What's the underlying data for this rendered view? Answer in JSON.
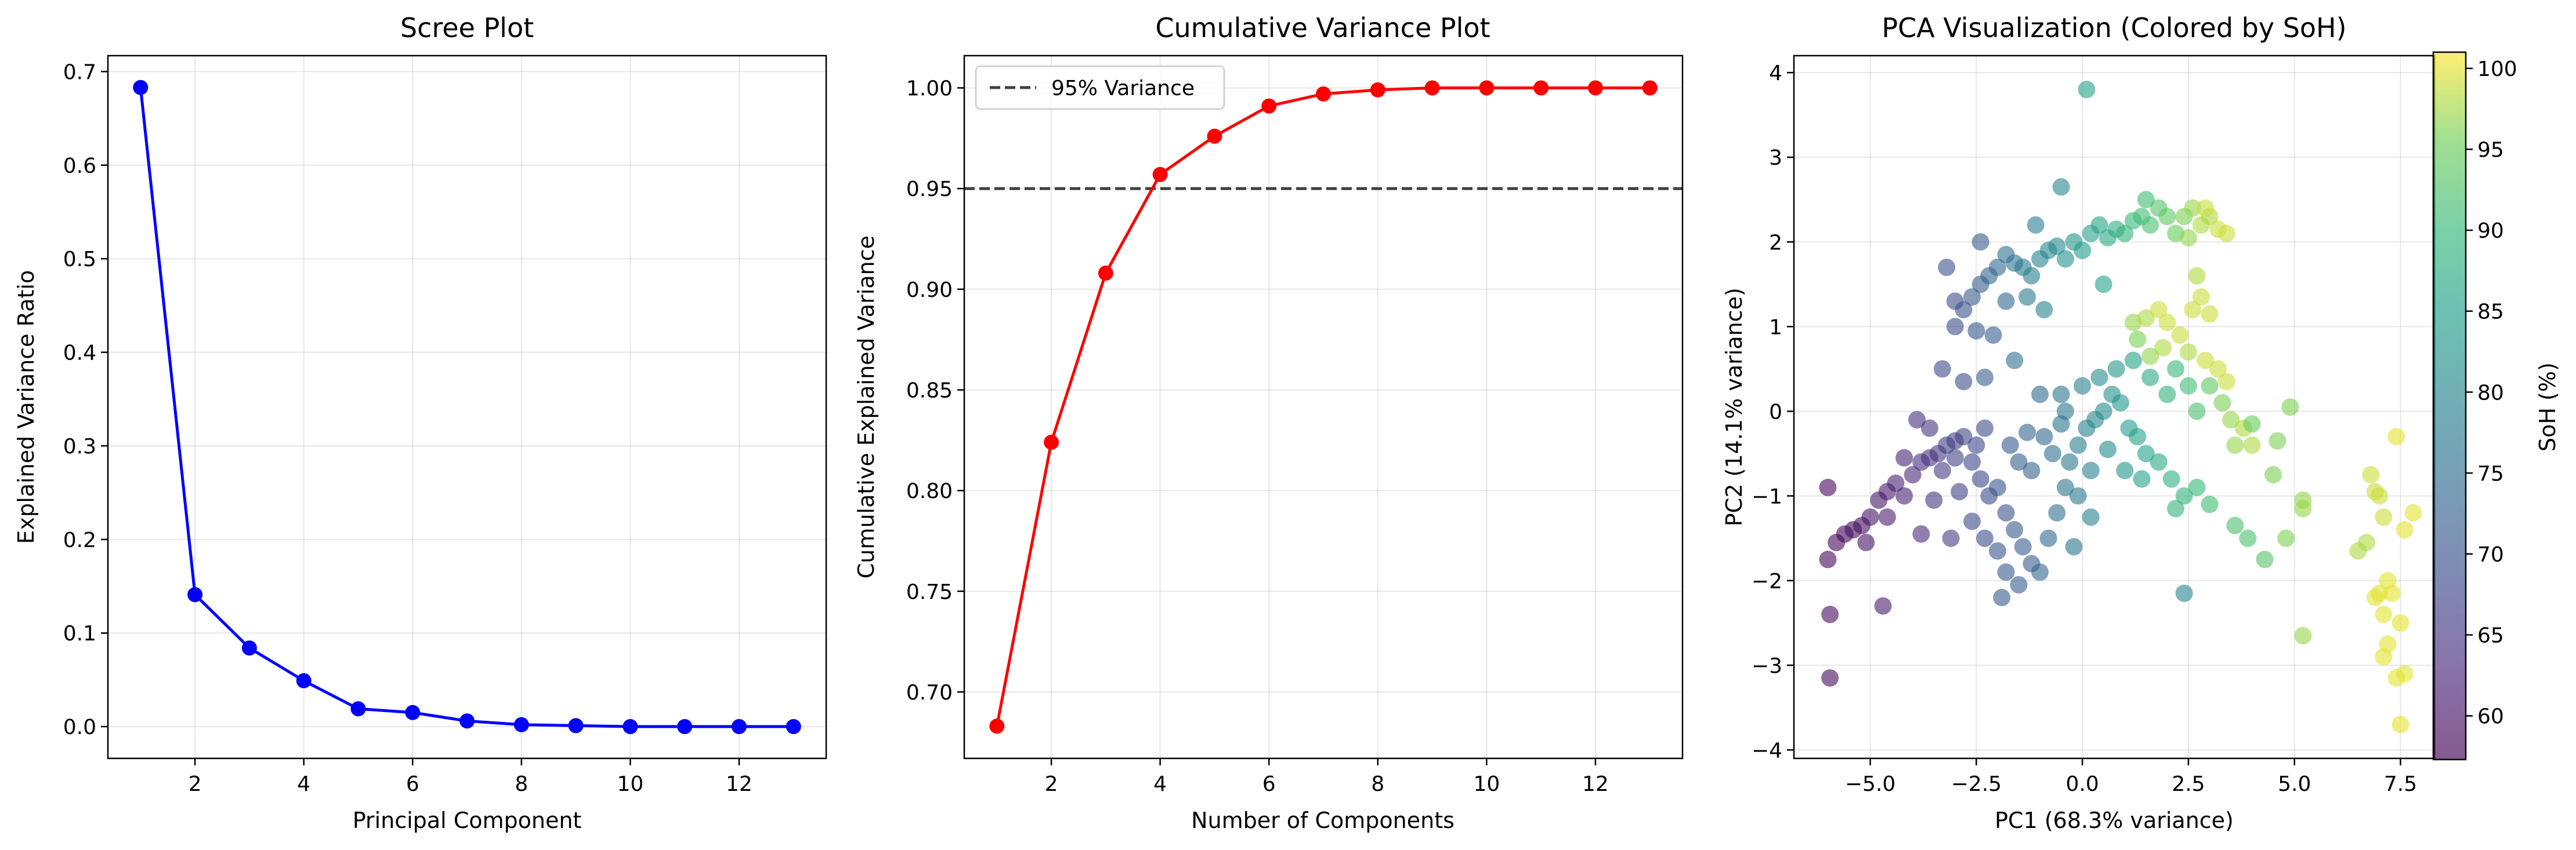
{
  "chart_data": [
    {
      "type": "line",
      "title": "Scree Plot",
      "xlabel": "Principal Component",
      "ylabel": "Explained Variance Ratio",
      "xlim": [
        0.4,
        13.6
      ],
      "ylim": [
        -0.034,
        0.717
      ],
      "xticks": [
        2,
        4,
        6,
        8,
        10,
        12
      ],
      "yticks": [
        0.0,
        0.1,
        0.2,
        0.3,
        0.4,
        0.5,
        0.6,
        0.7
      ],
      "ytick_labels": [
        "0.0",
        "0.1",
        "0.2",
        "0.3",
        "0.4",
        "0.5",
        "0.6",
        "0.7"
      ],
      "grid": true,
      "color": "#0000ff",
      "x": [
        1,
        2,
        3,
        4,
        5,
        6,
        7,
        8,
        9,
        10,
        11,
        12,
        13
      ],
      "values": [
        0.683,
        0.141,
        0.084,
        0.049,
        0.019,
        0.015,
        0.006,
        0.002,
        0.001,
        0.0,
        0.0,
        0.0,
        0.0
      ]
    },
    {
      "type": "line",
      "title": "Cumulative Variance Plot",
      "xlabel": "Number of Components",
      "ylabel": "Cumulative Explained Variance",
      "xlim": [
        0.4,
        13.6
      ],
      "ylim": [
        0.667,
        1.016
      ],
      "xticks": [
        2,
        4,
        6,
        8,
        10,
        12
      ],
      "yticks": [
        0.7,
        0.75,
        0.8,
        0.85,
        0.9,
        0.95,
        1.0
      ],
      "ytick_labels": [
        "0.70",
        "0.75",
        "0.80",
        "0.85",
        "0.90",
        "0.95",
        "1.00"
      ],
      "grid": true,
      "color": "#ff0000",
      "x": [
        1,
        2,
        3,
        4,
        5,
        6,
        7,
        8,
        9,
        10,
        11,
        12,
        13
      ],
      "values": [
        0.683,
        0.824,
        0.908,
        0.957,
        0.976,
        0.991,
        0.997,
        0.999,
        1.0,
        1.0,
        1.0,
        1.0,
        1.0
      ],
      "reference_line": {
        "y": 0.95,
        "label": "95% Variance",
        "color": "#404040",
        "style": "dashed"
      },
      "legend_position": "upper-left"
    },
    {
      "type": "scatter",
      "title": "PCA Visualization (Colored by SoH)",
      "xlabel": "PC1 (68.3% variance)",
      "ylabel": "PC2 (14.1% variance)",
      "xlim": [
        -6.8,
        8.3
      ],
      "ylim": [
        -4.1,
        4.2
      ],
      "xticks": [
        -5.0,
        -2.5,
        0.0,
        2.5,
        5.0,
        7.5
      ],
      "xtick_labels": [
        "−5.0",
        "−2.5",
        "0.0",
        "2.5",
        "5.0",
        "7.5"
      ],
      "yticks": [
        -4,
        -3,
        -2,
        -1,
        0,
        1,
        2,
        3,
        4
      ],
      "ytick_labels": [
        "−4",
        "−3",
        "−2",
        "−1",
        "0",
        "1",
        "2",
        "3",
        "4"
      ],
      "grid": true,
      "colormap": "viridis",
      "colorbar": {
        "label": "SoH (%)",
        "range": [
          57.3,
          101.0
        ],
        "ticks": [
          60,
          65,
          70,
          75,
          80,
          85,
          90,
          95,
          100
        ]
      },
      "points": [
        {
          "x": -6.0,
          "y": -0.9,
          "c": 58
        },
        {
          "x": -6.0,
          "y": -1.75,
          "c": 58
        },
        {
          "x": -5.95,
          "y": -2.4,
          "c": 59
        },
        {
          "x": -5.95,
          "y": -3.15,
          "c": 59
        },
        {
          "x": -5.8,
          "y": -1.55,
          "c": 58
        },
        {
          "x": -5.6,
          "y": -1.45,
          "c": 58
        },
        {
          "x": -5.4,
          "y": -1.4,
          "c": 59
        },
        {
          "x": -5.2,
          "y": -1.35,
          "c": 59
        },
        {
          "x": -5.0,
          "y": -1.25,
          "c": 60
        },
        {
          "x": -4.8,
          "y": -1.05,
          "c": 60
        },
        {
          "x": -4.6,
          "y": -0.95,
          "c": 61
        },
        {
          "x": -4.7,
          "y": -2.3,
          "c": 61
        },
        {
          "x": -4.4,
          "y": -0.85,
          "c": 62
        },
        {
          "x": -4.2,
          "y": -1.0,
          "c": 62
        },
        {
          "x": -4.0,
          "y": -0.75,
          "c": 63
        },
        {
          "x": -3.8,
          "y": -0.6,
          "c": 64
        },
        {
          "x": -3.6,
          "y": -0.55,
          "c": 64
        },
        {
          "x": -3.4,
          "y": -0.5,
          "c": 65
        },
        {
          "x": -3.2,
          "y": -0.4,
          "c": 66
        },
        {
          "x": -3.0,
          "y": -0.35,
          "c": 66
        },
        {
          "x": -2.8,
          "y": -0.3,
          "c": 67
        },
        {
          "x": -3.5,
          "y": -1.05,
          "c": 65
        },
        {
          "x": -3.1,
          "y": -1.5,
          "c": 66
        },
        {
          "x": -2.9,
          "y": -0.95,
          "c": 67
        },
        {
          "x": -3.9,
          "y": -0.1,
          "c": 64
        },
        {
          "x": -3.6,
          "y": -0.2,
          "c": 65
        },
        {
          "x": -2.6,
          "y": -0.6,
          "c": 68
        },
        {
          "x": -2.4,
          "y": -0.8,
          "c": 68
        },
        {
          "x": -2.2,
          "y": -1.0,
          "c": 69
        },
        {
          "x": -2.0,
          "y": -0.9,
          "c": 70
        },
        {
          "x": -1.8,
          "y": -1.2,
          "c": 70
        },
        {
          "x": -1.6,
          "y": -1.4,
          "c": 71
        },
        {
          "x": -1.4,
          "y": -1.6,
          "c": 72
        },
        {
          "x": -1.2,
          "y": -1.8,
          "c": 72
        },
        {
          "x": -1.0,
          "y": -1.9,
          "c": 73
        },
        {
          "x": -1.8,
          "y": -1.9,
          "c": 71
        },
        {
          "x": -2.0,
          "y": -1.65,
          "c": 70
        },
        {
          "x": -1.9,
          "y": -2.2,
          "c": 71
        },
        {
          "x": -1.5,
          "y": -2.05,
          "c": 72
        },
        {
          "x": -0.8,
          "y": -1.5,
          "c": 74
        },
        {
          "x": -0.6,
          "y": -1.2,
          "c": 75
        },
        {
          "x": -0.4,
          "y": -0.9,
          "c": 76
        },
        {
          "x": -0.3,
          "y": -0.6,
          "c": 77
        },
        {
          "x": -0.1,
          "y": -0.4,
          "c": 78
        },
        {
          "x": 0.1,
          "y": -0.2,
          "c": 79
        },
        {
          "x": 0.3,
          "y": -0.1,
          "c": 80
        },
        {
          "x": 0.5,
          "y": 0.0,
          "c": 81
        },
        {
          "x": 0.7,
          "y": 0.2,
          "c": 82
        },
        {
          "x": 0.9,
          "y": 0.1,
          "c": 83
        },
        {
          "x": 1.1,
          "y": -0.2,
          "c": 84
        },
        {
          "x": 1.3,
          "y": -0.3,
          "c": 85
        },
        {
          "x": 1.5,
          "y": -0.5,
          "c": 86
        },
        {
          "x": 1.8,
          "y": -0.6,
          "c": 87
        },
        {
          "x": 2.1,
          "y": -0.8,
          "c": 88
        },
        {
          "x": 2.4,
          "y": -1.0,
          "c": 89
        },
        {
          "x": 2.7,
          "y": -0.9,
          "c": 90
        },
        {
          "x": 3.0,
          "y": -1.1,
          "c": 91
        },
        {
          "x": 2.2,
          "y": -1.15,
          "c": 89
        },
        {
          "x": 3.6,
          "y": -1.35,
          "c": 92
        },
        {
          "x": 3.9,
          "y": -1.5,
          "c": 92
        },
        {
          "x": 4.3,
          "y": -1.75,
          "c": 93
        },
        {
          "x": 2.4,
          "y": -2.15,
          "c": 80
        },
        {
          "x": -0.2,
          "y": -1.6,
          "c": 76
        },
        {
          "x": 0.2,
          "y": -1.25,
          "c": 79
        },
        {
          "x": -1.2,
          "y": -0.7,
          "c": 73
        },
        {
          "x": -0.9,
          "y": -0.3,
          "c": 74
        },
        {
          "x": -0.7,
          "y": -0.5,
          "c": 75
        },
        {
          "x": -1.5,
          "y": -0.6,
          "c": 72
        },
        {
          "x": -2.5,
          "y": -0.4,
          "c": 68
        },
        {
          "x": -2.3,
          "y": -0.2,
          "c": 69
        },
        {
          "x": -1.0,
          "y": 0.2,
          "c": 74
        },
        {
          "x": -0.5,
          "y": 0.2,
          "c": 76
        },
        {
          "x": 0.0,
          "y": 0.3,
          "c": 79
        },
        {
          "x": -0.4,
          "y": 0.0,
          "c": 77
        },
        {
          "x": 0.4,
          "y": 0.4,
          "c": 81
        },
        {
          "x": 0.8,
          "y": 0.5,
          "c": 83
        },
        {
          "x": 1.2,
          "y": 0.6,
          "c": 85
        },
        {
          "x": 1.6,
          "y": 0.4,
          "c": 87
        },
        {
          "x": 2.0,
          "y": 0.2,
          "c": 89
        },
        {
          "x": 2.2,
          "y": 0.5,
          "c": 90
        },
        {
          "x": 2.5,
          "y": 0.3,
          "c": 91
        },
        {
          "x": 2.7,
          "y": 0.0,
          "c": 92
        },
        {
          "x": 3.0,
          "y": 0.3,
          "c": 94
        },
        {
          "x": 3.3,
          "y": 0.1,
          "c": 96
        },
        {
          "x": 3.5,
          "y": -0.1,
          "c": 97
        },
        {
          "x": 3.8,
          "y": -0.2,
          "c": 98
        },
        {
          "x": 4.0,
          "y": -0.4,
          "c": 98
        },
        {
          "x": 3.6,
          "y": -0.4,
          "c": 97
        },
        {
          "x": 1.2,
          "y": 1.05,
          "c": 97
        },
        {
          "x": 1.5,
          "y": 1.1,
          "c": 98
        },
        {
          "x": 1.8,
          "y": 1.2,
          "c": 99
        },
        {
          "x": 2.0,
          "y": 1.05,
          "c": 99
        },
        {
          "x": 2.3,
          "y": 0.9,
          "c": 99
        },
        {
          "x": 2.6,
          "y": 1.2,
          "c": 99
        },
        {
          "x": 2.8,
          "y": 1.35,
          "c": 99
        },
        {
          "x": 3.0,
          "y": 1.15,
          "c": 99
        },
        {
          "x": 2.7,
          "y": 1.6,
          "c": 98
        },
        {
          "x": 2.5,
          "y": 0.7,
          "c": 98
        },
        {
          "x": 2.9,
          "y": 0.6,
          "c": 99
        },
        {
          "x": 3.2,
          "y": 0.5,
          "c": 99
        },
        {
          "x": 1.9,
          "y": 0.75,
          "c": 98
        },
        {
          "x": 1.6,
          "y": 0.65,
          "c": 97
        },
        {
          "x": 1.3,
          "y": 0.85,
          "c": 96
        },
        {
          "x": 3.4,
          "y": 0.35,
          "c": 99
        },
        {
          "x": -3.2,
          "y": 1.7,
          "c": 70
        },
        {
          "x": -3.0,
          "y": 1.3,
          "c": 69
        },
        {
          "x": -2.8,
          "y": 1.2,
          "c": 70
        },
        {
          "x": -2.6,
          "y": 1.35,
          "c": 71
        },
        {
          "x": -2.4,
          "y": 1.5,
          "c": 72
        },
        {
          "x": -2.2,
          "y": 1.6,
          "c": 73
        },
        {
          "x": -2.0,
          "y": 1.7,
          "c": 74
        },
        {
          "x": -1.8,
          "y": 1.85,
          "c": 75
        },
        {
          "x": -1.6,
          "y": 1.75,
          "c": 76
        },
        {
          "x": -1.4,
          "y": 1.7,
          "c": 77
        },
        {
          "x": -1.2,
          "y": 1.6,
          "c": 78
        },
        {
          "x": -1.0,
          "y": 1.8,
          "c": 79
        },
        {
          "x": -0.8,
          "y": 1.9,
          "c": 80
        },
        {
          "x": -0.6,
          "y": 1.95,
          "c": 81
        },
        {
          "x": -0.4,
          "y": 1.8,
          "c": 82
        },
        {
          "x": -0.2,
          "y": 2.0,
          "c": 83
        },
        {
          "x": 0.0,
          "y": 1.9,
          "c": 84
        },
        {
          "x": 0.2,
          "y": 2.1,
          "c": 85
        },
        {
          "x": 0.4,
          "y": 2.2,
          "c": 86
        },
        {
          "x": 0.6,
          "y": 2.05,
          "c": 87
        },
        {
          "x": 0.8,
          "y": 2.15,
          "c": 88
        },
        {
          "x": 1.0,
          "y": 2.1,
          "c": 89
        },
        {
          "x": 1.2,
          "y": 2.25,
          "c": 90
        },
        {
          "x": 1.4,
          "y": 2.3,
          "c": 91
        },
        {
          "x": 1.6,
          "y": 2.2,
          "c": 92
        },
        {
          "x": 1.8,
          "y": 2.4,
          "c": 93
        },
        {
          "x": 2.0,
          "y": 2.3,
          "c": 94
        },
        {
          "x": 2.2,
          "y": 2.1,
          "c": 95
        },
        {
          "x": 2.4,
          "y": 2.3,
          "c": 96
        },
        {
          "x": 2.6,
          "y": 2.4,
          "c": 97
        },
        {
          "x": 2.8,
          "y": 2.2,
          "c": 98
        },
        {
          "x": 3.0,
          "y": 2.3,
          "c": 98
        },
        {
          "x": 3.2,
          "y": 2.15,
          "c": 99
        },
        {
          "x": 3.4,
          "y": 2.1,
          "c": 99
        },
        {
          "x": 2.5,
          "y": 2.05,
          "c": 97
        },
        {
          "x": 2.9,
          "y": 2.4,
          "c": 99
        },
        {
          "x": 1.5,
          "y": 2.5,
          "c": 91
        },
        {
          "x": -0.5,
          "y": 2.65,
          "c": 80
        },
        {
          "x": 0.1,
          "y": 3.8,
          "c": 85
        },
        {
          "x": -1.1,
          "y": 2.2,
          "c": 78
        },
        {
          "x": -1.8,
          "y": 1.3,
          "c": 74
        },
        {
          "x": -1.3,
          "y": 1.35,
          "c": 77
        },
        {
          "x": -0.9,
          "y": 1.2,
          "c": 79
        },
        {
          "x": -2.4,
          "y": 2.0,
          "c": 72
        },
        {
          "x": -3.0,
          "y": 1.0,
          "c": 69
        },
        {
          "x": -2.5,
          "y": 0.95,
          "c": 71
        },
        {
          "x": -2.1,
          "y": 0.9,
          "c": 72
        },
        {
          "x": -2.3,
          "y": 0.4,
          "c": 72
        },
        {
          "x": -3.3,
          "y": 0.5,
          "c": 68
        },
        {
          "x": -1.6,
          "y": 0.6,
          "c": 75
        },
        {
          "x": -2.8,
          "y": 0.35,
          "c": 69
        },
        {
          "x": 0.5,
          "y": 1.5,
          "c": 85
        },
        {
          "x": 4.9,
          "y": 0.05,
          "c": 96
        },
        {
          "x": 5.2,
          "y": -1.05,
          "c": 97
        },
        {
          "x": 5.2,
          "y": -1.15,
          "c": 97
        },
        {
          "x": 5.2,
          "y": -2.65,
          "c": 97
        },
        {
          "x": 4.6,
          "y": -0.35,
          "c": 96
        },
        {
          "x": 4.0,
          "y": -0.15,
          "c": 95
        },
        {
          "x": 4.5,
          "y": -0.75,
          "c": 96
        },
        {
          "x": 4.8,
          "y": -1.5,
          "c": 96
        },
        {
          "x": 6.5,
          "y": -1.65,
          "c": 98
        },
        {
          "x": 6.7,
          "y": -1.55,
          "c": 98
        },
        {
          "x": 6.8,
          "y": -0.75,
          "c": 99
        },
        {
          "x": 7.0,
          "y": -1.0,
          "c": 99
        },
        {
          "x": 6.9,
          "y": -2.2,
          "c": 100
        },
        {
          "x": 7.0,
          "y": -2.15,
          "c": 100
        },
        {
          "x": 7.1,
          "y": -2.4,
          "c": 100
        },
        {
          "x": 7.2,
          "y": -2.0,
          "c": 100
        },
        {
          "x": 7.3,
          "y": -2.15,
          "c": 100
        },
        {
          "x": 7.1,
          "y": -2.9,
          "c": 100
        },
        {
          "x": 7.2,
          "y": -2.75,
          "c": 100
        },
        {
          "x": 7.4,
          "y": -3.15,
          "c": 100
        },
        {
          "x": 7.5,
          "y": -3.7,
          "c": 100
        },
        {
          "x": 7.6,
          "y": -3.1,
          "c": 100
        },
        {
          "x": 7.5,
          "y": -2.5,
          "c": 100
        },
        {
          "x": 7.4,
          "y": -0.3,
          "c": 100
        },
        {
          "x": 7.8,
          "y": -1.2,
          "c": 100
        },
        {
          "x": 7.6,
          "y": -1.4,
          "c": 100
        },
        {
          "x": 7.1,
          "y": -1.25,
          "c": 99
        },
        {
          "x": 6.9,
          "y": -0.95,
          "c": 99
        },
        {
          "x": -4.2,
          "y": -0.55,
          "c": 62
        },
        {
          "x": -4.6,
          "y": -1.25,
          "c": 61
        },
        {
          "x": -5.1,
          "y": -1.55,
          "c": 60
        },
        {
          "x": -3.8,
          "y": -1.45,
          "c": 63
        },
        {
          "x": -3.3,
          "y": -0.7,
          "c": 66
        },
        {
          "x": -3.0,
          "y": -0.55,
          "c": 67
        },
        {
          "x": -2.6,
          "y": -1.3,
          "c": 68
        },
        {
          "x": -2.3,
          "y": -1.5,
          "c": 69
        },
        {
          "x": -1.7,
          "y": -0.4,
          "c": 71
        },
        {
          "x": -1.3,
          "y": -0.25,
          "c": 73
        },
        {
          "x": -0.5,
          "y": -0.15,
          "c": 76
        },
        {
          "x": 0.6,
          "y": -0.45,
          "c": 81
        },
        {
          "x": 1.0,
          "y": -0.7,
          "c": 83
        },
        {
          "x": 1.4,
          "y": -0.8,
          "c": 85
        },
        {
          "x": 0.2,
          "y": -0.7,
          "c": 79
        },
        {
          "x": -0.1,
          "y": -1.0,
          "c": 77
        }
      ]
    }
  ]
}
